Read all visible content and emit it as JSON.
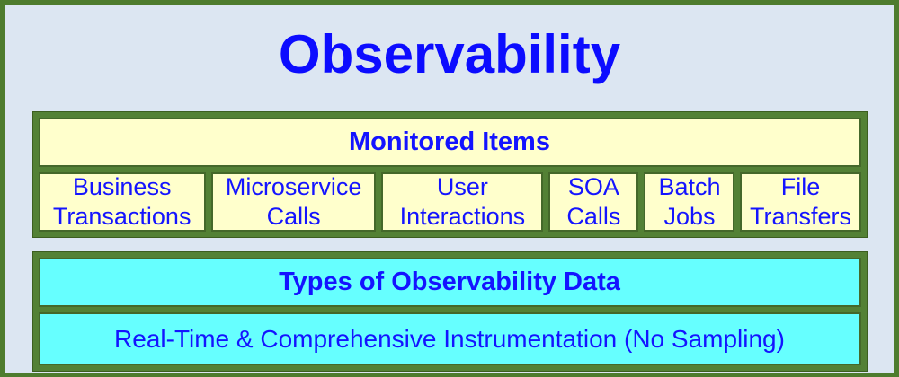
{
  "title": "Observability",
  "colors": {
    "frame_green": "#4e7c2e",
    "panel_green": "#538135",
    "slide_background": "#dce6f2",
    "yellow_fill": "#ffffcc",
    "cyan_fill": "#66ffff",
    "text_blue": "#1414ff",
    "title_blue": "#0c0cff"
  },
  "monitored": {
    "header": "Monitored Items",
    "items": [
      {
        "label": "Business Transactions"
      },
      {
        "label": "Microservice Calls"
      },
      {
        "label": "User Interactions"
      },
      {
        "label": "SOA Calls"
      },
      {
        "label": "Batch Jobs"
      },
      {
        "label": "File Transfers"
      }
    ]
  },
  "observability_data": {
    "header": "Types of Observability Data",
    "rows": [
      {
        "label": "Real-Time & Comprehensive Instrumentation (No Sampling)"
      }
    ]
  }
}
